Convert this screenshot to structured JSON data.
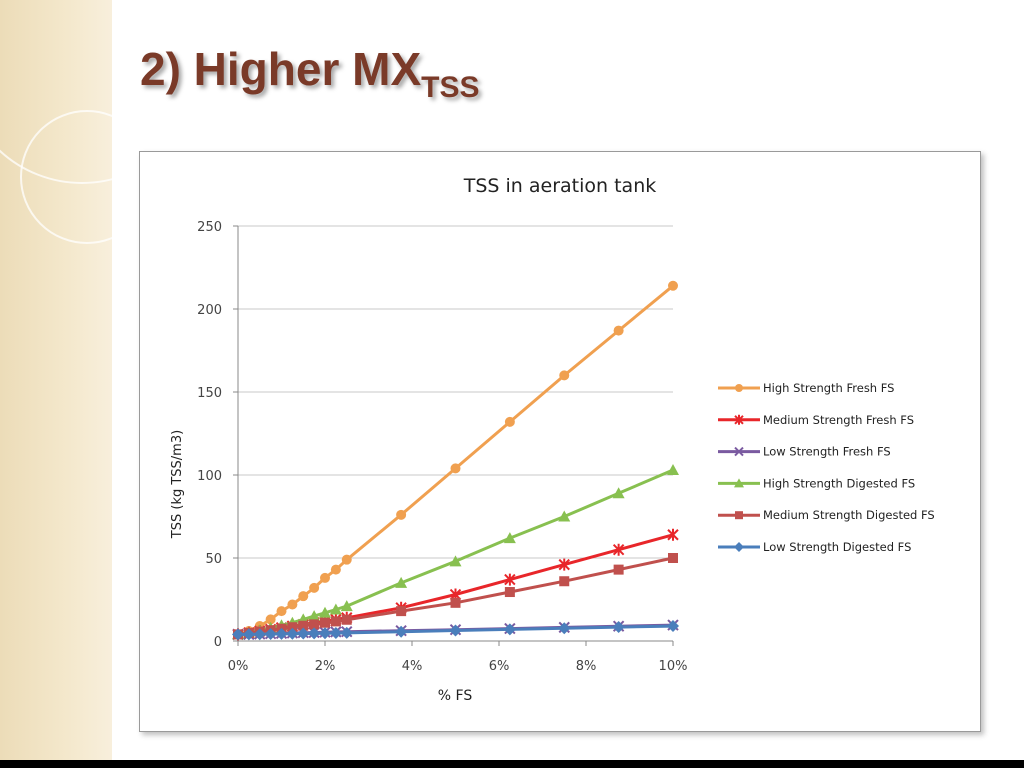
{
  "slide": {
    "title_main": "2) Higher MX",
    "title_sub": "TSS"
  },
  "chart_data": {
    "type": "line",
    "title": "TSS in aeration tank",
    "xlabel": "% FS",
    "ylabel": "TSS (kg TSS/m3)",
    "xlim": [
      0,
      10
    ],
    "ylim": [
      0,
      250
    ],
    "x_ticks": [
      0,
      2,
      4,
      6,
      8,
      10
    ],
    "x_tick_labels": [
      "0%",
      "2%",
      "4%",
      "6%",
      "8%",
      "10%"
    ],
    "y_ticks": [
      0,
      50,
      100,
      150,
      200,
      250
    ],
    "y_tick_labels": [
      "0",
      "50",
      "100",
      "150",
      "200",
      "250"
    ],
    "grid": "horizontal",
    "legend_position": "right",
    "series": [
      {
        "name": "High Strength Fresh FS",
        "color": "#f0a050",
        "marker": "circle",
        "x": [
          0,
          0.25,
          0.5,
          0.75,
          1.0,
          1.25,
          1.5,
          1.75,
          2.0,
          2.25,
          2.5,
          3.75,
          5.0,
          6.25,
          7.5,
          8.75,
          10.0
        ],
        "y": [
          4,
          6,
          9,
          13,
          18,
          22,
          27,
          32,
          38,
          43,
          49,
          76,
          104,
          132,
          160,
          187,
          214
        ]
      },
      {
        "name": "Medium Strength Fresh FS",
        "color": "#e8262a",
        "marker": "star",
        "x": [
          0,
          0.25,
          0.5,
          0.75,
          1.0,
          1.25,
          1.5,
          1.75,
          2.0,
          2.25,
          2.5,
          3.75,
          5.0,
          6.25,
          7.5,
          8.75,
          10.0
        ],
        "y": [
          4,
          5,
          6,
          7,
          8,
          9,
          10,
          11,
          12,
          13,
          14,
          20,
          28,
          37,
          46,
          55,
          64
        ]
      },
      {
        "name": "Low Strength Fresh FS",
        "color": "#7a5aa0",
        "marker": "x",
        "x": [
          0,
          0.25,
          0.5,
          0.75,
          1.0,
          1.25,
          1.5,
          1.75,
          2.0,
          2.25,
          2.5,
          3.75,
          5.0,
          6.25,
          7.5,
          8.75,
          10.0
        ],
        "y": [
          4,
          4,
          4.2,
          4.4,
          4.6,
          4.8,
          5,
          5.1,
          5.3,
          5.5,
          5.6,
          6.2,
          6.8,
          7.5,
          8.2,
          8.9,
          9.6
        ]
      },
      {
        "name": "High Strength Digested FS",
        "color": "#88c050",
        "marker": "triangle",
        "x": [
          0,
          0.25,
          0.5,
          0.75,
          1.0,
          1.25,
          1.5,
          1.75,
          2.0,
          2.25,
          2.5,
          3.75,
          5.0,
          6.25,
          7.5,
          8.75,
          10.0
        ],
        "y": [
          4,
          5,
          6.5,
          8,
          9.5,
          11,
          13,
          15,
          17,
          19,
          21,
          35,
          48,
          62,
          75,
          89,
          103
        ]
      },
      {
        "name": "Medium Strength Digested FS",
        "color": "#c0504d",
        "marker": "square",
        "x": [
          0,
          0.25,
          0.5,
          0.75,
          1.0,
          1.25,
          1.5,
          1.75,
          2.0,
          2.25,
          2.5,
          3.75,
          5.0,
          6.25,
          7.5,
          8.75,
          10.0
        ],
        "y": [
          4,
          4.8,
          5.7,
          6.5,
          7.4,
          8.3,
          9.2,
          10,
          11,
          11.8,
          12.8,
          18,
          23,
          29.5,
          36,
          43,
          50
        ]
      },
      {
        "name": "Low Strength Digested FS",
        "color": "#4a7ebb",
        "marker": "diamond",
        "x": [
          0,
          0.25,
          0.5,
          0.75,
          1.0,
          1.25,
          1.5,
          1.75,
          2.0,
          2.25,
          2.5,
          3.75,
          5.0,
          6.25,
          7.5,
          8.75,
          10.0
        ],
        "y": [
          4,
          4,
          4.1,
          4.2,
          4.3,
          4.4,
          4.5,
          4.6,
          4.7,
          4.8,
          4.9,
          5.6,
          6.3,
          7,
          7.7,
          8.4,
          9
        ]
      }
    ]
  }
}
